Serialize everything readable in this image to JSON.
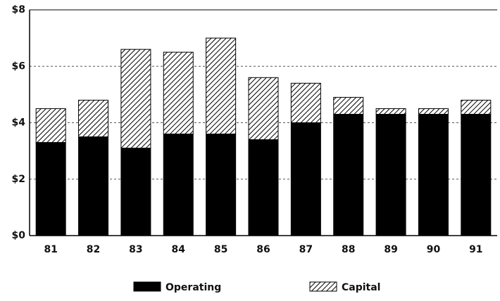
{
  "chart_data": {
    "type": "stacked_bar",
    "categories": [
      "81",
      "82",
      "83",
      "84",
      "85",
      "86",
      "87",
      "88",
      "89",
      "90",
      "91"
    ],
    "series": [
      {
        "name": "Operating",
        "color": "#000000",
        "values": [
          3.3,
          3.5,
          3.1,
          3.6,
          3.6,
          3.4,
          4.0,
          4.3,
          4.3,
          4.3,
          4.3
        ]
      },
      {
        "name": "Capital",
        "color": "#000000",
        "hatch": true,
        "values": [
          1.2,
          1.3,
          3.5,
          2.9,
          3.4,
          2.2,
          1.4,
          0.6,
          0.2,
          0.2,
          0.5
        ]
      }
    ],
    "ylim": [
      0,
      8
    ],
    "yticks": [
      {
        "value": 0,
        "label": "$0"
      },
      {
        "value": 2,
        "label": "$2"
      },
      {
        "value": 4,
        "label": "$4"
      },
      {
        "value": 6,
        "label": "$6"
      },
      {
        "value": 8,
        "label": "$8"
      }
    ],
    "grid": true,
    "legend": "bottom"
  }
}
